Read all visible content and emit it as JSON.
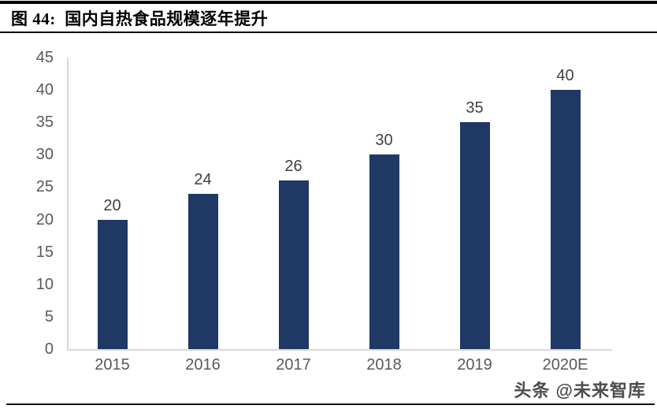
{
  "header": {
    "title": "图 44:  国内自热食品规模逐年提升"
  },
  "watermark": {
    "text": "头条 @未来智库"
  },
  "colors": {
    "bar": "#1f3864",
    "axis_line": "#d9d9d9",
    "ytick_label": "#595959",
    "xtick_label": "#595959",
    "data_label": "#404040",
    "title_text": "#000000",
    "header_rule": "#000000",
    "footer_rule": "#111111"
  },
  "chart_data": {
    "type": "bar",
    "title": "图 44:  国内自热食品规模逐年提升",
    "categories": [
      "2015",
      "2016",
      "2017",
      "2018",
      "2019",
      "2020E"
    ],
    "values": [
      20,
      24,
      26,
      30,
      35,
      40
    ],
    "data_labels": [
      "20",
      "24",
      "26",
      "30",
      "35",
      "40"
    ],
    "xlabel": "",
    "ylabel": "",
    "ylim": [
      0,
      45
    ],
    "yticks": [
      0,
      5,
      10,
      15,
      20,
      25,
      30,
      35,
      40,
      45
    ],
    "grid": false,
    "legend": "none",
    "bar_color": "#1f3864"
  }
}
